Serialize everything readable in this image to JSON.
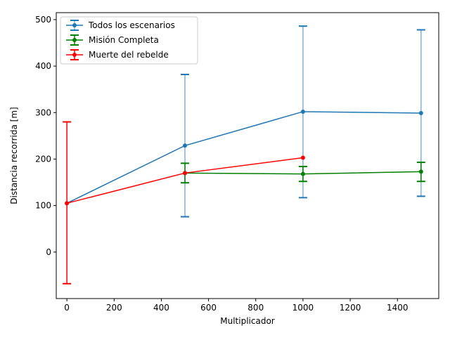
{
  "chart_data": {
    "type": "line",
    "title": "",
    "xlabel": "Multiplicador",
    "ylabel": "Distancia recorrida [m]",
    "xlim": [
      -45,
      1575
    ],
    "ylim": [
      -100,
      515
    ],
    "xticks": [
      0,
      200,
      400,
      600,
      800,
      1000,
      1200,
      1400
    ],
    "yticks": [
      0,
      100,
      200,
      300,
      400,
      500
    ],
    "grid": false,
    "legend_position": "top-left",
    "series": [
      {
        "name": "Todos los escenarios",
        "color": "#1f77b4",
        "errorbar_color": "#7fb2d7",
        "x": [
          0,
          500,
          1000,
          1500
        ],
        "y": [
          105,
          229,
          302,
          299
        ],
        "yerr_lower": [
          105,
          76,
          117,
          120
        ],
        "yerr_upper": [
          105,
          382,
          486,
          478
        ]
      },
      {
        "name": "Misión Completa",
        "color": "#008000",
        "errorbar_color": "#008000",
        "x": [
          500,
          1000,
          1500
        ],
        "y": [
          170,
          168,
          173
        ],
        "yerr_lower": [
          149,
          152,
          152
        ],
        "yerr_upper": [
          191,
          184,
          193
        ]
      },
      {
        "name": "Muerte del rebelde",
        "color": "#ff0000",
        "errorbar_color": "#ff0000",
        "x": [
          0,
          500,
          1000
        ],
        "y": [
          105,
          170,
          203
        ],
        "yerr_lower": [
          -68,
          170,
          203
        ],
        "yerr_upper": [
          280,
          170,
          203
        ]
      }
    ]
  }
}
